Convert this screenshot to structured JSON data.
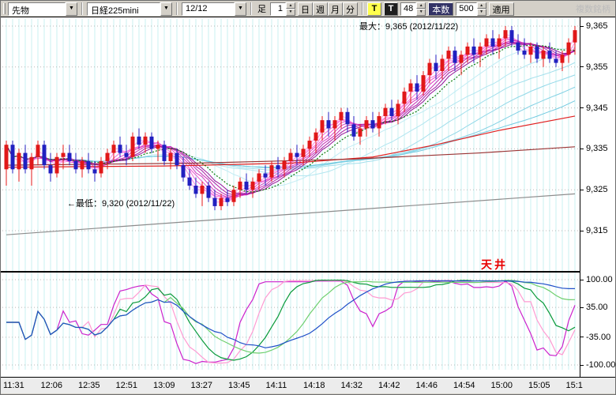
{
  "toolbar": {
    "instrument": "先物",
    "symbol": "日経225mini",
    "contract": "12/12",
    "period_label": "足",
    "period_value": "1",
    "unit_buttons": [
      "日",
      "週",
      "月",
      "分"
    ],
    "t_button_1": "T",
    "t_button_2": "T",
    "bars_count": "48",
    "bars_label": "本数",
    "span_count": "500",
    "apply_label": "適用",
    "right_note": "複数銘柄"
  },
  "chart_data": {
    "type": "candlestick_with_oscillator",
    "annotations": {
      "max_label": "最大：9,365 (2012/11/22)",
      "min_label": "←最低：9,320 (2012/11/22)",
      "ceiling_label": "天井"
    },
    "price_axis": {
      "ticks": [
        {
          "label": "9,365",
          "value": 9365
        },
        {
          "label": "9,355",
          "value": 9355
        },
        {
          "label": "9,345",
          "value": 9345
        },
        {
          "label": "9,335",
          "value": 9335
        },
        {
          "label": "9,325",
          "value": 9325
        },
        {
          "label": "9,315",
          "value": 9315
        }
      ]
    },
    "oscillator_axis": {
      "ticks": [
        {
          "label": "100.00",
          "value": 100
        },
        {
          "label": "35.00",
          "value": 35
        },
        {
          "label": "-35.00",
          "value": -35
        },
        {
          "label": "-100.00",
          "value": -100
        }
      ]
    },
    "time_labels": [
      "11:31",
      "12:06",
      "12:35",
      "12:51",
      "13:09",
      "13:27",
      "13:45",
      "14:11",
      "14:18",
      "14:32",
      "14:42",
      "14:46",
      "14:54",
      "15:00",
      "15:05",
      "15:1"
    ],
    "candles": [
      [
        9330,
        9337,
        9326,
        9336
      ],
      [
        9336,
        9337,
        9329,
        9330
      ],
      [
        9330,
        9335,
        9327,
        9334
      ],
      [
        9334,
        9336,
        9329,
        9330
      ],
      [
        9330,
        9334,
        9326,
        9333
      ],
      [
        9333,
        9337,
        9331,
        9336
      ],
      [
        9336,
        9337,
        9330,
        9331
      ],
      [
        9331,
        9334,
        9327,
        9329
      ],
      [
        9329,
        9334,
        9328,
        9333
      ],
      [
        9333,
        9336,
        9330,
        9334
      ],
      [
        9334,
        9336,
        9331,
        9332
      ],
      [
        9332,
        9334,
        9329,
        9330
      ],
      [
        9330,
        9333,
        9328,
        9332
      ],
      [
        9332,
        9334,
        9329,
        9330
      ],
      [
        9330,
        9332,
        9327,
        9329
      ],
      [
        9329,
        9333,
        9328,
        9332
      ],
      [
        9332,
        9335,
        9330,
        9334
      ],
      [
        9334,
        9337,
        9332,
        9336
      ],
      [
        9336,
        9338,
        9333,
        9334
      ],
      [
        9334,
        9336,
        9331,
        9333
      ],
      [
        9333,
        9339,
        9332,
        9338
      ],
      [
        9338,
        9340,
        9335,
        9336
      ],
      [
        9336,
        9339,
        9334,
        9338
      ],
      [
        9338,
        9339,
        9334,
        9335
      ],
      [
        9335,
        9337,
        9332,
        9336
      ],
      [
        9336,
        9337,
        9331,
        9332
      ],
      [
        9332,
        9335,
        9330,
        9334
      ],
      [
        9334,
        9335,
        9330,
        9331
      ],
      [
        9331,
        9333,
        9327,
        9328
      ],
      [
        9328,
        9330,
        9325,
        9326
      ],
      [
        9326,
        9328,
        9323,
        9324
      ],
      [
        9324,
        9327,
        9321,
        9326
      ],
      [
        9326,
        9327,
        9322,
        9323
      ],
      [
        9323,
        9325,
        9320,
        9321
      ],
      [
        9321,
        9324,
        9320,
        9323
      ],
      [
        9323,
        9325,
        9321,
        9322
      ],
      [
        9322,
        9326,
        9321,
        9325
      ],
      [
        9325,
        9328,
        9323,
        9327
      ],
      [
        9327,
        9329,
        9324,
        9325
      ],
      [
        9325,
        9328,
        9323,
        9327
      ],
      [
        9327,
        9330,
        9325,
        9329
      ],
      [
        9329,
        9331,
        9326,
        9328
      ],
      [
        9328,
        9332,
        9327,
        9331
      ],
      [
        9331,
        9333,
        9328,
        9330
      ],
      [
        9330,
        9333,
        9328,
        9332
      ],
      [
        9332,
        9335,
        9330,
        9334
      ],
      [
        9334,
        9336,
        9331,
        9333
      ],
      [
        9333,
        9336,
        9331,
        9335
      ],
      [
        9335,
        9338,
        9333,
        9337
      ],
      [
        9337,
        9340,
        9334,
        9339
      ],
      [
        9339,
        9343,
        9337,
        9342
      ],
      [
        9342,
        9344,
        9338,
        9340
      ],
      [
        9340,
        9343,
        9337,
        9342
      ],
      [
        9342,
        9345,
        9340,
        9344
      ],
      [
        9344,
        9345,
        9339,
        9341
      ],
      [
        9341,
        9343,
        9337,
        9338
      ],
      [
        9338,
        9341,
        9336,
        9340
      ],
      [
        9340,
        9343,
        9338,
        9342
      ],
      [
        9342,
        9344,
        9339,
        9340
      ],
      [
        9340,
        9344,
        9338,
        9343
      ],
      [
        9343,
        9346,
        9341,
        9345
      ],
      [
        9345,
        9347,
        9342,
        9343
      ],
      [
        9343,
        9347,
        9341,
        9346
      ],
      [
        9346,
        9350,
        9344,
        9349
      ],
      [
        9349,
        9352,
        9346,
        9351
      ],
      [
        9351,
        9353,
        9347,
        9349
      ],
      [
        9349,
        9354,
        9348,
        9353
      ],
      [
        9353,
        9357,
        9351,
        9356
      ],
      [
        9356,
        9358,
        9352,
        9354
      ],
      [
        9354,
        9358,
        9352,
        9357
      ],
      [
        9357,
        9360,
        9354,
        9359
      ],
      [
        9359,
        9360,
        9354,
        9356
      ],
      [
        9356,
        9359,
        9353,
        9358
      ],
      [
        9358,
        9361,
        9356,
        9360
      ],
      [
        9360,
        9362,
        9356,
        9358
      ],
      [
        9358,
        9361,
        9355,
        9360
      ],
      [
        9360,
        9363,
        9358,
        9362
      ],
      [
        9362,
        9364,
        9358,
        9360
      ],
      [
        9360,
        9363,
        9357,
        9362
      ],
      [
        9362,
        9365,
        9360,
        9364
      ],
      [
        9364,
        9365,
        9360,
        9361
      ],
      [
        9361,
        9363,
        9358,
        9359
      ],
      [
        9359,
        9362,
        9357,
        9358
      ],
      [
        9358,
        9361,
        9356,
        9360
      ],
      [
        9360,
        9361,
        9356,
        9357
      ],
      [
        9357,
        9360,
        9355,
        9359
      ],
      [
        9359,
        9361,
        9356,
        9357
      ],
      [
        9357,
        9359,
        9355,
        9356
      ],
      [
        9356,
        9359,
        9354,
        9358
      ],
      [
        9358,
        9362,
        9356,
        9361
      ],
      [
        9361,
        9365,
        9358,
        9364
      ]
    ],
    "overlays": {
      "ribbon": {
        "periods": [
          2,
          3,
          4,
          5,
          6,
          7,
          8,
          9
        ],
        "colors": [
          "#ffa6f0",
          "#ff8ae6",
          "#f76ddb",
          "#ea52cf",
          "#d93bc2",
          "#c629b4",
          "#b01aa6",
          "#971299"
        ]
      },
      "band": {
        "periods": [
          16,
          24,
          32,
          40,
          48,
          56
        ],
        "colors": [
          "#c2ecf4",
          "#b2e6f0",
          "#a2dfec",
          "#92d8e8",
          "#82d1e4",
          "#72cae0"
        ]
      },
      "dotted": {
        "period": 11,
        "color": "#0a7a0a"
      },
      "long_lines": [
        {
          "name": "ma-mid-red",
          "color": "#e02020",
          "points": [
            [
              0,
              9330.5
            ],
            [
              25,
              9330.8
            ],
            [
              45,
              9331.5
            ],
            [
              58,
              9333
            ],
            [
              68,
              9336
            ],
            [
              78,
              9339.5
            ],
            [
              90,
              9343
            ]
          ]
        },
        {
          "name": "ma-long-darkred",
          "color": "#993333",
          "points": [
            [
              0,
              9331
            ],
            [
              30,
              9331.5
            ],
            [
              55,
              9332.5
            ],
            [
              75,
              9334
            ],
            [
              90,
              9335.5
            ]
          ]
        },
        {
          "name": "ma-long-gray",
          "color": "#8c8c8c",
          "points": [
            [
              0,
              9314
            ],
            [
              45,
              9319
            ],
            [
              90,
              9324
            ]
          ]
        }
      ]
    },
    "oscillator": {
      "indicator": "RCI",
      "range": [
        -100,
        100
      ],
      "series": [
        {
          "period": 9,
          "color": "#cc22cc"
        },
        {
          "period": 13,
          "color": "#ff9ad2"
        },
        {
          "period": 18,
          "color": "#0a9a3a"
        },
        {
          "period": 26,
          "color": "#6fcf6f"
        },
        {
          "period": 34,
          "color": "#2050c8"
        }
      ]
    },
    "colors": {
      "up": "#e01818",
      "down": "#2020c0",
      "grid_vertical": "#c8f0f2",
      "grid_horizontal": "#b8b8b8"
    }
  }
}
